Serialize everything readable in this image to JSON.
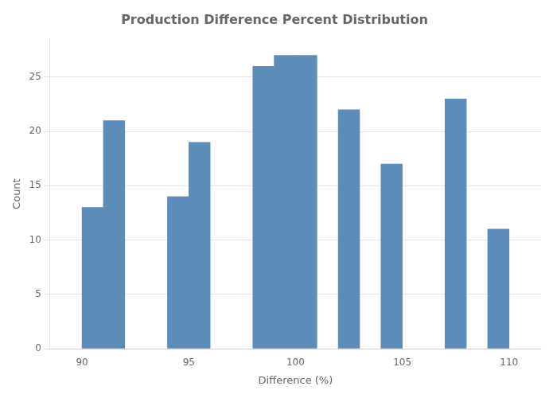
{
  "chart_data": {
    "type": "bar",
    "title": "Production Difference Percent Distribution",
    "xlabel": "Difference (%)",
    "ylabel": "Count",
    "x": [
      90.0,
      91.0,
      94.0,
      95.0,
      98.0,
      99.0,
      100.0,
      102.0,
      104.0,
      107.0,
      109.0
    ],
    "values": [
      13,
      21,
      14,
      19,
      26,
      27,
      27,
      22,
      17,
      23,
      11
    ],
    "color": "#5B8DB8",
    "xlim": [
      88.5,
      111.5
    ],
    "ylim": [
      0,
      28.5
    ],
    "xticks": [
      90,
      95,
      100,
      105,
      110
    ],
    "yticks": [
      0,
      5,
      10,
      15,
      20,
      25
    ],
    "grid": true
  }
}
